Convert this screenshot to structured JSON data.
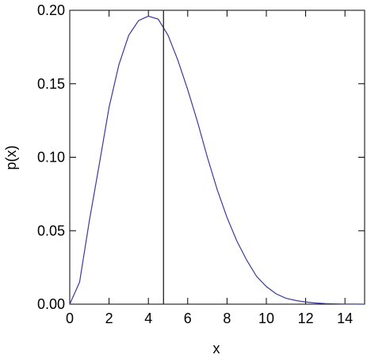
{
  "chart_data": {
    "type": "line",
    "xlabel": "x",
    "ylabel": "p(x)",
    "x": [
      0,
      0.5,
      1,
      1.5,
      2,
      2.5,
      3,
      3.5,
      4,
      4.5,
      5,
      5.5,
      6,
      6.5,
      7,
      7.5,
      8,
      8.5,
      9,
      9.5,
      10,
      10.5,
      11,
      11.5,
      12,
      12.5,
      13,
      13.5,
      14,
      14.5,
      15
    ],
    "series": [
      {
        "color": "#3a3a9e",
        "values": [
          0,
          0.015,
          0.057,
          0.095,
          0.134,
          0.163,
          0.183,
          0.193,
          0.196,
          0.194,
          0.183,
          0.166,
          0.146,
          0.124,
          0.1,
          0.078,
          0.059,
          0.043,
          0.03,
          0.019,
          0.012,
          0.007,
          0.004,
          0.0025,
          0.0015,
          0.0008,
          0.0004,
          0.0002,
          0.0001,
          5e-05,
          2e-05
        ]
      }
    ],
    "vline": 4.77,
    "vline_color": "#222222",
    "xlim": [
      0,
      15
    ],
    "xticks": [
      0,
      2,
      4,
      6,
      8,
      10,
      12,
      14
    ],
    "ylim": [
      0,
      0.2
    ],
    "yticks": [
      {
        "value": 0,
        "label": "0.00"
      },
      {
        "value": 0.05,
        "label": "0.05"
      },
      {
        "value": 0.1,
        "label": "0.10"
      },
      {
        "value": 0.15,
        "label": "0.15"
      },
      {
        "value": 0.2,
        "label": "0.20"
      }
    ]
  }
}
